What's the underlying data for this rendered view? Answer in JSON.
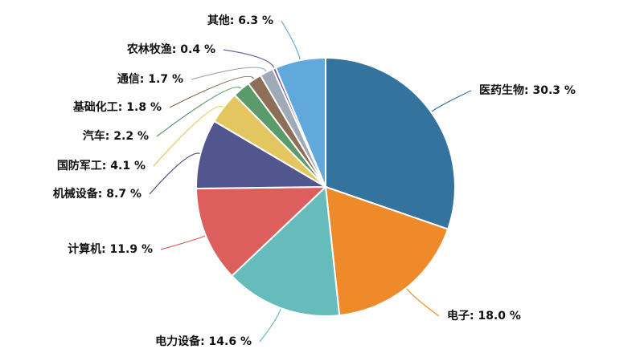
{
  "chart_data": {
    "type": "pie",
    "unit_suffix": " %",
    "slices": [
      {
        "label": "医药生物",
        "value": 30.3,
        "color": "#35739f"
      },
      {
        "label": "电子",
        "value": 18.0,
        "color": "#ef8a2a"
      },
      {
        "label": "电力设备",
        "value": 14.6,
        "color": "#66bbbb"
      },
      {
        "label": "计算机",
        "value": 11.9,
        "color": "#dc5f5e"
      },
      {
        "label": "机械设备",
        "value": 8.7,
        "color": "#52568e"
      },
      {
        "label": "国防军工",
        "value": 4.1,
        "color": "#e3c65f"
      },
      {
        "label": "汽车",
        "value": 2.2,
        "color": "#5b9a6b"
      },
      {
        "label": "基础化工",
        "value": 1.8,
        "color": "#8d6f58"
      },
      {
        "label": "通信",
        "value": 1.7,
        "color": "#a0a9b6"
      },
      {
        "label": "农林牧渔",
        "value": 0.4,
        "color": "#7c5ea6"
      },
      {
        "label": "其他",
        "value": 6.3,
        "color": "#61a9dc"
      }
    ]
  }
}
